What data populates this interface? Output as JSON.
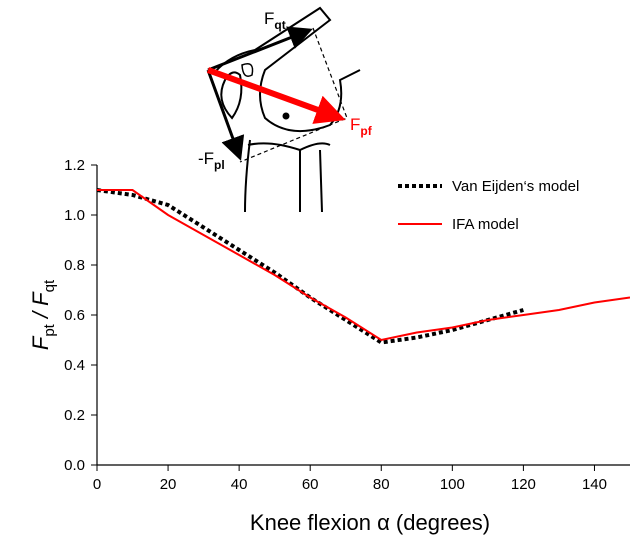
{
  "chart_data": {
    "type": "line",
    "ylabel_parts": [
      "F",
      "pt",
      " / F",
      "qt"
    ],
    "xlabel": "Knee flexion α (degrees)",
    "annotations": {
      "force_qt": [
        "F",
        "qt"
      ],
      "force_pf": [
        "F",
        "pf"
      ],
      "force_pl": [
        "-F",
        "pl"
      ]
    },
    "series": [
      {
        "name": "Van Eijden‘s model",
        "color": "#000000",
        "style": "dotted",
        "x": [
          0,
          10,
          20,
          30,
          40,
          50,
          60,
          70,
          80,
          90,
          100,
          110,
          120
        ],
        "values": [
          1.1,
          1.08,
          1.04,
          0.95,
          0.86,
          0.77,
          0.67,
          0.58,
          0.49,
          0.51,
          0.54,
          0.58,
          0.62
        ]
      },
      {
        "name": "IFA model",
        "color": "#ff0000",
        "style": "solid",
        "x": [
          0,
          10,
          20,
          30,
          40,
          50,
          60,
          70,
          80,
          90,
          100,
          110,
          120,
          130,
          140,
          150
        ],
        "values": [
          1.1,
          1.1,
          1.0,
          0.92,
          0.84,
          0.76,
          0.67,
          0.59,
          0.5,
          0.53,
          0.55,
          0.58,
          0.6,
          0.62,
          0.65,
          0.67
        ]
      }
    ],
    "xlim": [
      0,
      150
    ],
    "xticks": [
      0,
      20,
      40,
      60,
      80,
      100,
      120,
      140
    ],
    "ylim": [
      0,
      1.2
    ],
    "yticks": [
      {
        "value": 0,
        "label": "0.0"
      },
      0.2,
      0.4,
      0.6,
      0.8,
      {
        "value": 1,
        "label": "1.0"
      },
      1.2
    ],
    "legend": "upper right"
  }
}
